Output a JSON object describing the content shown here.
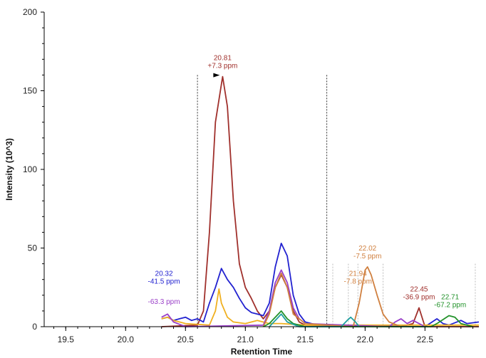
{
  "chart_data": {
    "type": "line",
    "xlabel": "Retention Time",
    "ylabel": "Intensity (10^3)",
    "xlim": [
      19.32,
      22.95
    ],
    "ylim": [
      0,
      200
    ],
    "xticks": [
      "19.5",
      "20.0",
      "20.5",
      "21.0",
      "21.5",
      "22.0",
      "22.5"
    ],
    "xtick_values": [
      19.5,
      20.0,
      20.5,
      21.0,
      21.5,
      22.0,
      22.5
    ],
    "yticks": [
      "0",
      "50",
      "100",
      "150",
      "200"
    ],
    "ytick_values": [
      0,
      50,
      100,
      150,
      200
    ],
    "integration_bounds": [
      20.6,
      21.68
    ],
    "reference_lines": [
      21.73,
      21.86,
      21.94,
      22.15,
      22.92
    ],
    "series": [
      {
        "name": "brown",
        "color": "#a0302c",
        "x": [
          20.3,
          20.6,
          20.65,
          20.7,
          20.75,
          20.81,
          20.85,
          20.9,
          20.95,
          21.0,
          21.05,
          21.1,
          21.15,
          21.2,
          21.25,
          21.3,
          21.35,
          21.4,
          21.45,
          21.5,
          22.3,
          22.4,
          22.45,
          22.5,
          22.95
        ],
        "y": [
          0,
          1,
          10,
          60,
          130,
          159,
          140,
          80,
          40,
          25,
          18,
          10,
          5,
          10,
          25,
          33,
          25,
          10,
          3,
          1,
          0,
          2,
          12,
          0,
          0
        ]
      },
      {
        "name": "blue",
        "color": "#2222d0",
        "x": [
          20.3,
          20.35,
          20.4,
          20.45,
          20.5,
          20.55,
          20.6,
          20.65,
          20.7,
          20.75,
          20.8,
          20.85,
          20.9,
          20.95,
          21.0,
          21.05,
          21.1,
          21.15,
          21.2,
          21.25,
          21.3,
          21.35,
          21.4,
          21.45,
          21.5,
          21.6,
          22.5,
          22.6,
          22.65,
          22.7,
          22.8,
          22.85,
          22.95
        ],
        "y": [
          5,
          6,
          4,
          5,
          6,
          4,
          5,
          3,
          15,
          25,
          37,
          30,
          25,
          18,
          12,
          9,
          8,
          7,
          15,
          38,
          53,
          45,
          20,
          8,
          3,
          1,
          0,
          5,
          2,
          1,
          4,
          2,
          3
        ]
      },
      {
        "name": "yellow",
        "color": "#f0b020",
        "x": [
          20.3,
          20.35,
          20.4,
          20.5,
          20.7,
          20.75,
          20.78,
          20.8,
          20.85,
          20.9,
          21.0,
          21.1,
          21.2,
          21.3,
          21.5,
          22.95
        ],
        "y": [
          5,
          6,
          4,
          2,
          1,
          10,
          24,
          15,
          6,
          3,
          2,
          4,
          2,
          2,
          1,
          1
        ]
      },
      {
        "name": "purple",
        "color": "#9a40c8",
        "x": [
          20.3,
          20.35,
          20.4,
          20.5,
          21.15,
          21.2,
          21.25,
          21.3,
          21.35,
          21.4,
          21.45,
          21.5,
          22.2,
          22.25,
          22.3,
          22.35,
          22.4,
          22.45,
          22.5
        ],
        "y": [
          6,
          8,
          3,
          0,
          1,
          10,
          28,
          36,
          28,
          12,
          5,
          2,
          0,
          3,
          5,
          2,
          4,
          2,
          0
        ]
      },
      {
        "name": "orange",
        "color": "#d08040",
        "x": [
          21.15,
          21.2,
          21.25,
          21.3,
          21.35,
          21.4,
          21.5,
          21.9,
          21.95,
          22.0,
          22.02,
          22.05,
          22.1,
          22.15,
          22.2,
          22.3
        ],
        "y": [
          0,
          8,
          25,
          34,
          25,
          8,
          2,
          0,
          15,
          36,
          38,
          33,
          20,
          8,
          3,
          0
        ]
      },
      {
        "name": "green",
        "color": "#22922a",
        "x": [
          21.15,
          21.2,
          21.25,
          21.3,
          21.35,
          21.4,
          21.5,
          22.55,
          22.6,
          22.7,
          22.75,
          22.8,
          22.9
        ],
        "y": [
          0,
          2,
          6,
          10,
          5,
          2,
          0,
          0,
          2,
          7,
          6,
          2,
          0
        ]
      },
      {
        "name": "teal",
        "color": "#20a0a0",
        "x": [
          21.2,
          21.25,
          21.3,
          21.35,
          21.45,
          21.8,
          21.85,
          21.88,
          21.92,
          21.95
        ],
        "y": [
          0,
          4,
          8,
          3,
          0,
          0,
          4,
          6,
          3,
          0
        ]
      }
    ],
    "annotations": [
      {
        "x": 20.81,
        "y": 159,
        "lines": [
          "20.81",
          "+7.3 ppm"
        ],
        "color": "#a0302c"
      },
      {
        "x": 20.32,
        "y": 22,
        "lines": [
          "20.32",
          "-41.5 ppm"
        ],
        "color": "#2222d0"
      },
      {
        "x": 20.32,
        "y": 9,
        "lines": [
          "-63.3 ppm"
        ],
        "color": "#9a40c8"
      },
      {
        "x": 22.02,
        "y": 38,
        "lines": [
          "22.02",
          "-7.5 ppm"
        ],
        "color": "#d08040"
      },
      {
        "x": 21.94,
        "y": 22,
        "lines": [
          "21.94",
          "-7.8 ppm"
        ],
        "color": "#d08040"
      },
      {
        "x": 22.45,
        "y": 12,
        "lines": [
          "22.45",
          "-36.9 ppm"
        ],
        "color": "#a0302c"
      },
      {
        "x": 22.71,
        "y": 7,
        "lines": [
          "22.71",
          "-67.2 ppm"
        ],
        "color": "#22922a"
      }
    ]
  }
}
